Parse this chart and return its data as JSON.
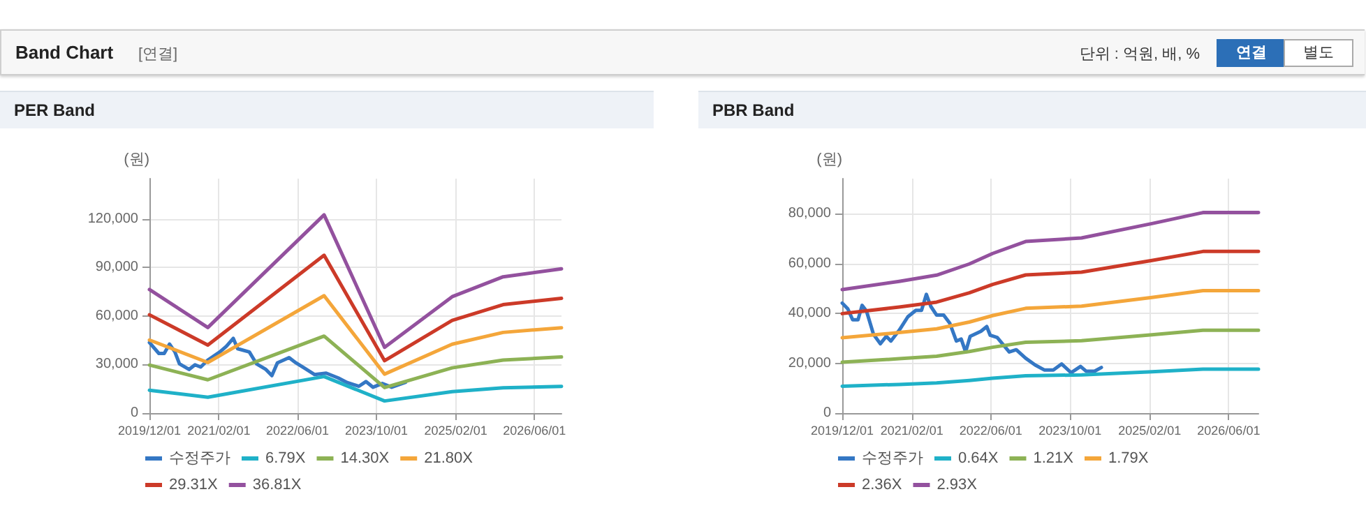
{
  "chart_data": [
    {
      "type": "line",
      "title": "PER Band",
      "ylabel": "(원)",
      "annotations": [
        "Band Chart",
        "[연결]",
        "단위 : 억원, 배, %",
        "연결",
        "별도"
      ],
      "xlim": [
        "2019-12-01",
        "2026-11-15"
      ],
      "xticks": [
        {
          "value": "2019-12-01",
          "label": "2019/12/01"
        },
        {
          "value": "2021-02-01",
          "label": "2021/02/01"
        },
        {
          "value": "2022-06-01",
          "label": "2022/06/01"
        },
        {
          "value": "2023-10-01",
          "label": "2023/10/01"
        },
        {
          "value": "2025-02-01",
          "label": "2025/02/01"
        },
        {
          "value": "2026-06-01",
          "label": "2026/06/01"
        }
      ],
      "ylim": [
        0,
        145000
      ],
      "yticks": [
        0,
        {
          "value": 30000,
          "label": "30,000"
        },
        {
          "value": 60000,
          "label": "60,000"
        },
        {
          "value": 90000,
          "label": "90,000"
        },
        {
          "value": 120000,
          "label": "120,000"
        }
      ],
      "grid": true,
      "legend": "bottom",
      "series": [
        {
          "name": "수정주가",
          "color": "#3477c4",
          "x": [
            "2019-12-01",
            "2020-01-28",
            "2020-03-01",
            "2020-04-03",
            "2020-05-06",
            "2020-06-03",
            "2020-08-01",
            "2020-09-07",
            "2020-10-12",
            "2020-11-25",
            "2021-02-07",
            "2021-03-19",
            "2021-05-01",
            "2021-05-28",
            "2021-08-08",
            "2021-09-21",
            "2021-11-18",
            "2021-12-25",
            "2022-01-28",
            "2022-04-10",
            "2022-05-22",
            "2022-07-18",
            "2022-09-15",
            "2022-11-25",
            "2023-02-06",
            "2023-04-03",
            "2023-06-15",
            "2023-07-28",
            "2023-09-10",
            "2023-11-06",
            "2024-01-03",
            "2024-03-28"
          ],
          "values": [
            43600,
            36900,
            36900,
            42700,
            37800,
            30500,
            27000,
            29900,
            28500,
            32800,
            37800,
            41300,
            46200,
            39800,
            37800,
            30500,
            27000,
            23200,
            31100,
            34300,
            31100,
            27600,
            23800,
            24700,
            21800,
            18900,
            16600,
            19500,
            16000,
            18300,
            16000,
            19000
          ]
        },
        {
          "name": "6.79X",
          "color": "#1fb1c8",
          "x": [
            "2019-12-01",
            "2020-11-25",
            "2022-11-12",
            "2023-11-20",
            "2025-01-10",
            "2025-11-20",
            "2026-11-15"
          ],
          "values": [
            14100,
            9800,
            22600,
            7500,
            13300,
            15600,
            16500
          ]
        },
        {
          "name": "14.30X",
          "color": "#8db255",
          "x": [
            "2019-12-01",
            "2020-11-25",
            "2022-11-12",
            "2023-11-20",
            "2025-01-10",
            "2025-11-20",
            "2026-11-15"
          ],
          "values": [
            29700,
            20600,
            47600,
            15800,
            28000,
            32800,
            34700
          ]
        },
        {
          "name": "21.80X",
          "color": "#f4a63a",
          "x": [
            "2019-12-01",
            "2020-11-25",
            "2022-11-12",
            "2023-11-20",
            "2025-01-10",
            "2025-11-20",
            "2026-11-15"
          ],
          "values": [
            45200,
            31300,
            72600,
            24100,
            42600,
            49900,
            52800
          ]
        },
        {
          "name": "29.31X",
          "color": "#cc3a28",
          "x": [
            "2019-12-01",
            "2020-11-25",
            "2022-11-12",
            "2023-11-20",
            "2025-01-10",
            "2025-11-20",
            "2026-11-15"
          ],
          "values": [
            60800,
            42100,
            97600,
            32400,
            57300,
            67100,
            71000
          ]
        },
        {
          "name": "36.81X",
          "color": "#93519e",
          "x": [
            "2019-12-01",
            "2020-11-25",
            "2022-11-12",
            "2023-11-20",
            "2025-01-10",
            "2025-11-20",
            "2026-11-15"
          ],
          "values": [
            76400,
            52900,
            122600,
            40700,
            72000,
            84300,
            89200
          ]
        }
      ]
    },
    {
      "type": "line",
      "title": "PBR Band",
      "ylabel": "(원)",
      "xlim": [
        "2019-12-01",
        "2026-12-01"
      ],
      "xticks": [
        {
          "value": "2019-12-01",
          "label": "2019/12/01"
        },
        {
          "value": "2021-02-01",
          "label": "2021/02/01"
        },
        {
          "value": "2022-06-01",
          "label": "2022/06/01"
        },
        {
          "value": "2023-10-01",
          "label": "2023/10/01"
        },
        {
          "value": "2025-02-01",
          "label": "2025/02/01"
        },
        {
          "value": "2026-06-01",
          "label": "2026/06/01"
        }
      ],
      "ylim": [
        0,
        94000
      ],
      "yticks": [
        0,
        {
          "value": 20000,
          "label": "20,000"
        },
        {
          "value": 40000,
          "label": "40,000"
        },
        {
          "value": 60000,
          "label": "60,000"
        },
        {
          "value": 80000,
          "label": "80,000"
        }
      ],
      "grid": true,
      "legend": "bottom",
      "series": [
        {
          "name": "수정주가",
          "color": "#3477c4",
          "x": [
            "2019-12-01",
            "2020-01-04",
            "2020-02-03",
            "2020-03-07",
            "2020-04-01",
            "2020-04-28",
            "2020-06-10",
            "2020-07-22",
            "2020-08-28",
            "2020-09-25",
            "2020-11-15",
            "2021-01-07",
            "2021-02-25",
            "2021-04-01",
            "2021-05-01",
            "2021-05-28",
            "2021-07-03",
            "2021-08-15",
            "2021-09-22",
            "2021-11-01",
            "2021-12-01",
            "2021-12-28",
            "2022-01-25",
            "2022-04-01",
            "2022-05-07",
            "2022-05-28",
            "2022-07-10",
            "2022-09-22",
            "2022-11-04",
            "2023-01-01",
            "2023-02-28",
            "2023-04-25",
            "2023-06-20",
            "2023-08-10",
            "2023-10-07",
            "2023-12-04",
            "2024-01-07",
            "2024-02-28",
            "2024-04-10"
          ],
          "values": [
            44100,
            41800,
            37400,
            37400,
            43200,
            40900,
            31600,
            27800,
            30800,
            28900,
            33200,
            38600,
            41200,
            41200,
            47600,
            42800,
            39300,
            39300,
            36000,
            28900,
            29700,
            24500,
            30800,
            32800,
            34700,
            31200,
            30300,
            24500,
            25400,
            22000,
            19300,
            17300,
            17300,
            19700,
            16200,
            18700,
            16800,
            16800,
            18300
          ]
        },
        {
          "name": "0.64X",
          "color": "#1fb1c8",
          "x": [
            "2019-12-01",
            "2020-11-15",
            "2021-07-03",
            "2022-01-20",
            "2022-06-12",
            "2023-01-01",
            "2023-12-10",
            "2025-02-15",
            "2025-12-25",
            "2026-12-01"
          ],
          "values": [
            10800,
            11500,
            12100,
            13100,
            14000,
            15000,
            15300,
            16600,
            17600,
            17600
          ]
        },
        {
          "name": "1.21X",
          "color": "#8db255",
          "x": [
            "2019-12-01",
            "2020-11-15",
            "2021-07-03",
            "2022-01-20",
            "2022-06-12",
            "2023-01-01",
            "2023-12-10",
            "2025-02-15",
            "2025-12-25",
            "2026-12-01"
          ],
          "values": [
            20400,
            21800,
            22800,
            24700,
            26400,
            28400,
            29000,
            31400,
            33200,
            33200
          ]
        },
        {
          "name": "1.79X",
          "color": "#f4a63a",
          "x": [
            "2019-12-01",
            "2020-11-15",
            "2021-07-03",
            "2022-01-20",
            "2022-06-12",
            "2023-01-01",
            "2023-12-10",
            "2025-02-15",
            "2025-12-25",
            "2026-12-01"
          ],
          "values": [
            30200,
            32300,
            33800,
            36500,
            39100,
            42000,
            42900,
            46400,
            49100,
            49100
          ]
        },
        {
          "name": "2.36X",
          "color": "#cc3a28",
          "x": [
            "2019-12-01",
            "2020-11-15",
            "2021-07-03",
            "2022-01-20",
            "2022-06-12",
            "2023-01-01",
            "2023-12-10",
            "2025-02-15",
            "2025-12-25",
            "2026-12-01"
          ],
          "values": [
            39900,
            42500,
            44500,
            48200,
            51600,
            55400,
            56500,
            61200,
            64800,
            64800
          ]
        },
        {
          "name": "2.93X",
          "color": "#93519e",
          "x": [
            "2019-12-01",
            "2020-11-15",
            "2021-07-03",
            "2022-01-20",
            "2022-06-12",
            "2023-01-01",
            "2023-12-10",
            "2025-02-15",
            "2025-12-25",
            "2026-12-01"
          ],
          "values": [
            49500,
            52800,
            55300,
            59800,
            64000,
            68800,
            70200,
            76000,
            80400,
            80400
          ]
        }
      ]
    }
  ]
}
